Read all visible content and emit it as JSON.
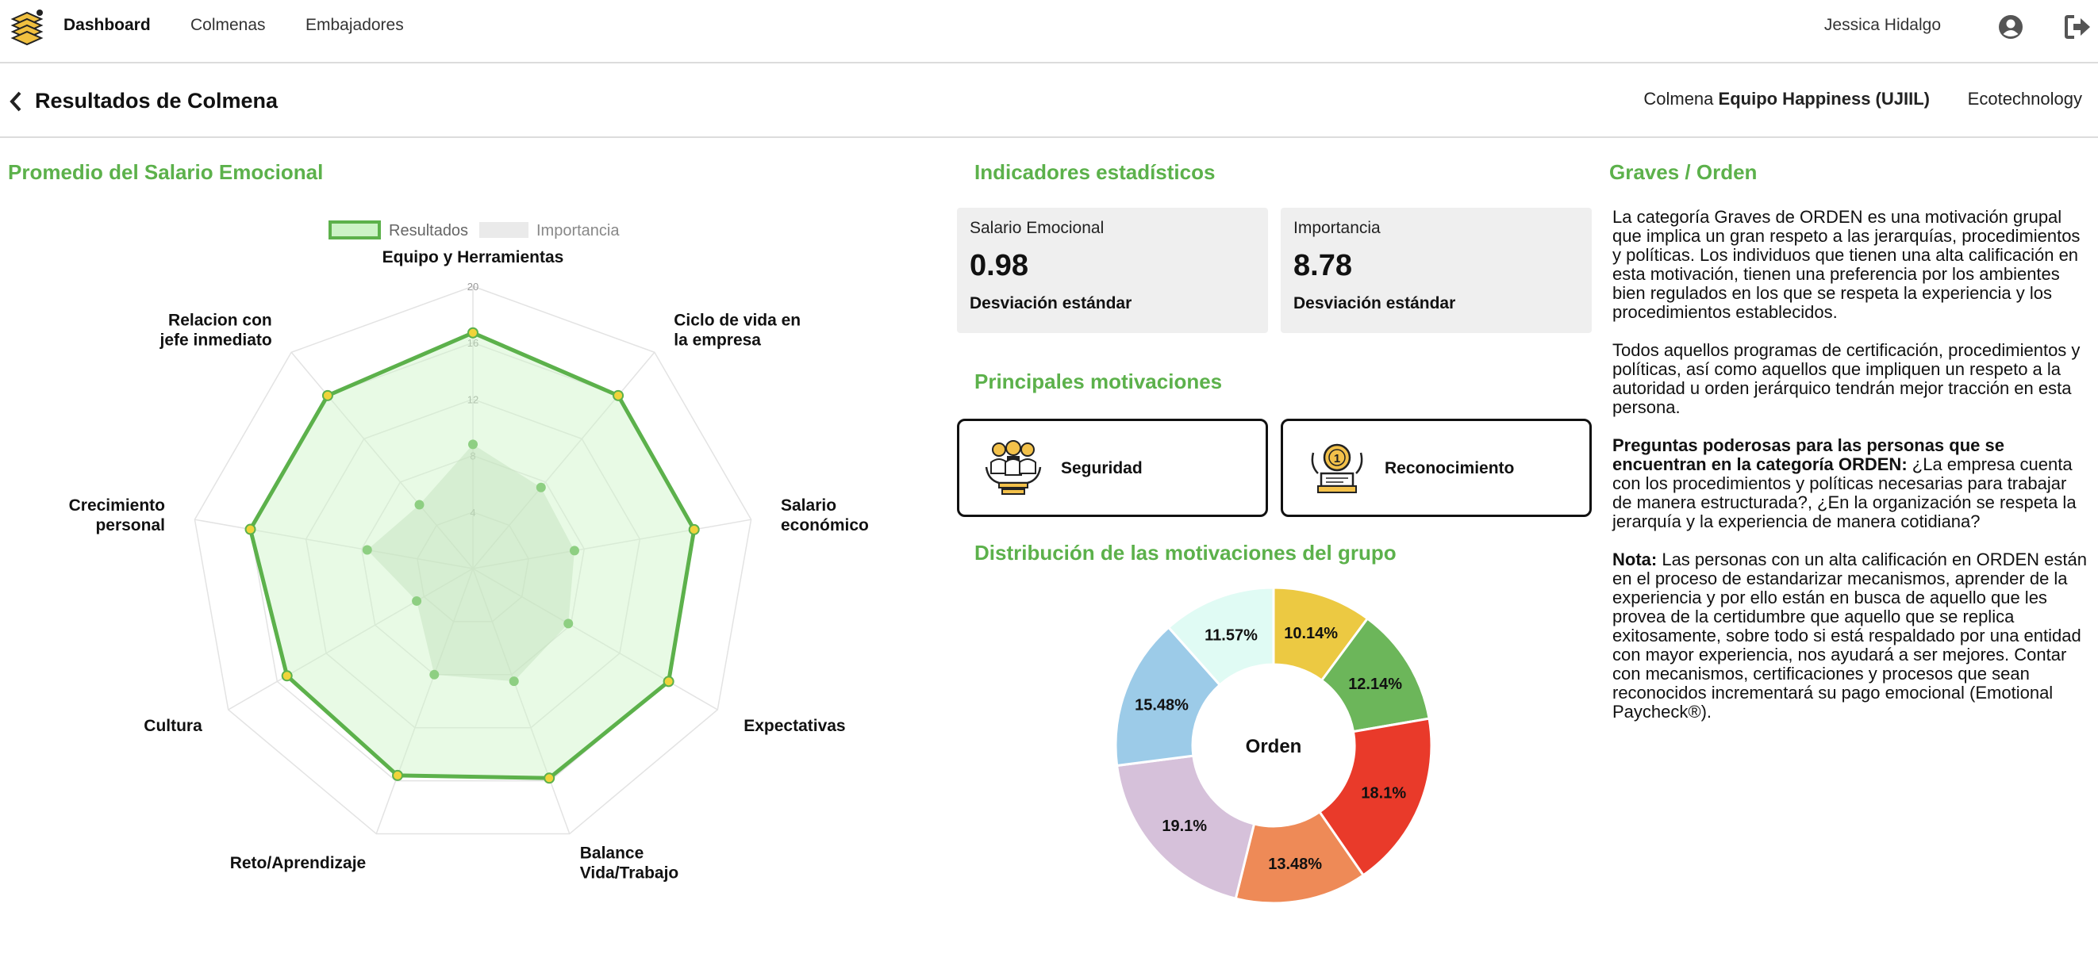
{
  "nav": {
    "links": [
      "Dashboard",
      "Colmenas",
      "Embajadores"
    ],
    "user_name": "Jessica Hidalgo"
  },
  "header": {
    "title": "Resultados de Colmena",
    "hive_prefix": "Colmena",
    "hive_name": "Equipo Happiness (UJIIL)",
    "company": "Ecotechnology"
  },
  "radar_section": {
    "title": "Promedio del Salario Emocional"
  },
  "stats_section": {
    "title": "Indicadores estadísticos",
    "cards": [
      {
        "label": "Salario Emocional",
        "value": "0.98",
        "foot": "Desviación estándar"
      },
      {
        "label": "Importancia",
        "value": "8.78",
        "foot": "Desviación estándar"
      }
    ]
  },
  "motivations_section": {
    "title": "Principales motivaciones",
    "items": [
      {
        "label": "Seguridad",
        "icon": "security-team-icon"
      },
      {
        "label": "Reconocimiento",
        "icon": "medal-award-icon"
      }
    ]
  },
  "distribution_section": {
    "title": "Distribución de las motivaciones del grupo",
    "center_label": "Orden"
  },
  "description": {
    "title": "Graves / Orden",
    "p1": "La categoría Graves de ORDEN es una motivación grupal que implica un gran respeto a las jerarquías, procedimientos y políticas. Los individuos que tienen una alta calificación en esta motivación, tienen una preferencia por los ambientes bien regulados en los que se respeta la experiencia y los procedimientos establecidos.",
    "p2": "Todos aquellos programas de certificación, procedimientos y políticas, así como aquellos que impliquen un respeto a la autoridad u orden jerárquico tendrán mejor tracción en esta persona.",
    "p3_bold": "Preguntas poderosas para las personas que se encuentran en la categoría ORDEN:",
    "p3_text": " ¿La empresa cuenta con los procedimientos y políticas necesarias para trabajar de manera estructurada?, ¿En la organización se respeta la jerarquía y la experiencia de manera cotidiana?",
    "p4_bold": "Nota:",
    "p4_text": " Las personas con un alta calificación en ORDEN están en el proceso de estandarizar mecanismos, aprender de la experiencia y por ello están en busca de aquello que les provea de la certidumbre que aquello que se replica exitosamente, sobre todo si está respaldado por una entidad con mayor experiencia, nos ayudará a ser mejores. Contar con mecanismos, certificaciones y procesos que sean reconocidos incrementará su pago emocional (Emotional Paycheck®)."
  },
  "colors": {
    "brand_green": "#5cb14b",
    "importance_fill": "#d4e8cf",
    "result_point": "#f0d43a"
  },
  "chart_data": [
    {
      "type": "radar",
      "title": "",
      "categories": [
        "Equipo y Herramientas",
        "Ciclo de vida en la empresa",
        "Salario económico",
        "Expectativas",
        "Balance Vida/Trabajo",
        "Reto/Aprendizaje",
        "Cultura",
        "Crecimiento personal",
        "Relacion con jefe inmediato"
      ],
      "category_lines": [
        [
          "Equipo y Herramientas"
        ],
        [
          "Ciclo de vida en",
          "la empresa"
        ],
        [
          "Salario",
          "económico"
        ],
        [
          "Expectativas"
        ],
        [
          "Balance",
          "Vida/Trabajo"
        ],
        [
          "Reto/Aprendizaje"
        ],
        [
          "Cultura"
        ],
        [
          "Crecimiento",
          "personal"
        ],
        [
          "Relacion con",
          "jefe inmediato"
        ]
      ],
      "ticks": [
        "4",
        "8",
        "12",
        "16",
        "20"
      ],
      "range": [
        0,
        20
      ],
      "grid": true,
      "legend_position": "top",
      "series": [
        {
          "name": "Resultados",
          "values": [
            16.7,
            16.0,
            15.9,
            16.0,
            15.8,
            15.6,
            15.2,
            16.0,
            16.0
          ]
        },
        {
          "name": "Importancia",
          "values": [
            8.8,
            7.5,
            7.3,
            7.8,
            8.5,
            8.0,
            4.6,
            7.6,
            5.9
          ]
        }
      ]
    },
    {
      "type": "pie",
      "title": "",
      "center_label": "Orden",
      "categories": [
        "Amarillo",
        "Verde",
        "Rojo",
        "Naranja",
        "Lila",
        "Azul",
        "Turquesa"
      ],
      "values": [
        10.14,
        12.14,
        18.1,
        13.48,
        19.1,
        15.48,
        11.57
      ],
      "labels": [
        "10.14%",
        "12.14%",
        "18.1%",
        "13.48%",
        "19.1%",
        "15.48%",
        "11.57%"
      ],
      "colors": [
        "#ecc942",
        "#6cb65a",
        "#e93a2a",
        "#ee8a57",
        "#d6c1da",
        "#9ccbe8",
        "#e0fbf4"
      ]
    }
  ]
}
